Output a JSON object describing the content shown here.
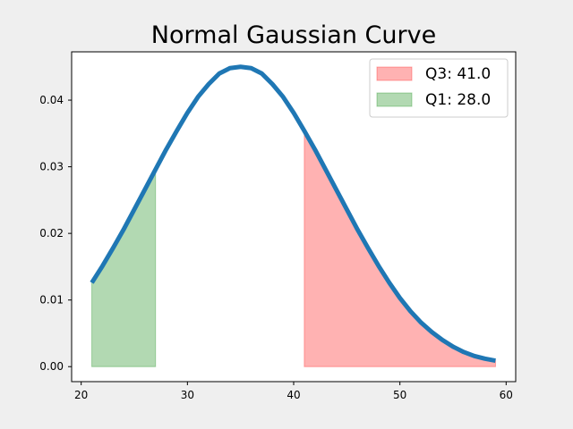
{
  "chart_data": {
    "type": "area",
    "title": "Normal Gaussian Curve",
    "xlabel": "",
    "ylabel": "",
    "xlim": [
      19.1,
      60.9
    ],
    "ylim": [
      -0.00225,
      0.04725
    ],
    "xticks": [
      20,
      30,
      40,
      50,
      60
    ],
    "yticks": [
      0.0,
      0.01,
      0.02,
      0.03,
      0.04
    ],
    "ytick_labels": [
      "0.00",
      "0.01",
      "0.02",
      "0.03",
      "0.04"
    ],
    "grid": false,
    "legend_position": "top-right",
    "curve": {
      "x": [
        21,
        22,
        23,
        24,
        25,
        26,
        27,
        28,
        29,
        30,
        31,
        32,
        33,
        34,
        35,
        36,
        37,
        38,
        39,
        40,
        41,
        42,
        43,
        44,
        45,
        46,
        47,
        48,
        49,
        50,
        51,
        52,
        53,
        54,
        55,
        56,
        57,
        58,
        59
      ],
      "y": [
        0.0126,
        0.0151,
        0.0178,
        0.0206,
        0.0236,
        0.0266,
        0.0296,
        0.0326,
        0.0354,
        0.0381,
        0.0405,
        0.0424,
        0.044,
        0.0448,
        0.045,
        0.0448,
        0.044,
        0.0424,
        0.0405,
        0.0381,
        0.0354,
        0.0326,
        0.0296,
        0.0266,
        0.0236,
        0.0206,
        0.0178,
        0.0151,
        0.0126,
        0.0103,
        0.0083,
        0.0066,
        0.0052,
        0.004,
        0.003,
        0.0022,
        0.0016,
        0.0012,
        0.0009
      ],
      "color": "#1f77b4"
    },
    "series": [
      {
        "name": "Q3: 41.0",
        "from_x": 41,
        "to_x": 59,
        "color": "#ff0000",
        "opacity": 0.3
      },
      {
        "name": "Q1: 28.0",
        "from_x": 21,
        "to_x": 27,
        "color": "#008000",
        "opacity": 0.3
      }
    ]
  }
}
